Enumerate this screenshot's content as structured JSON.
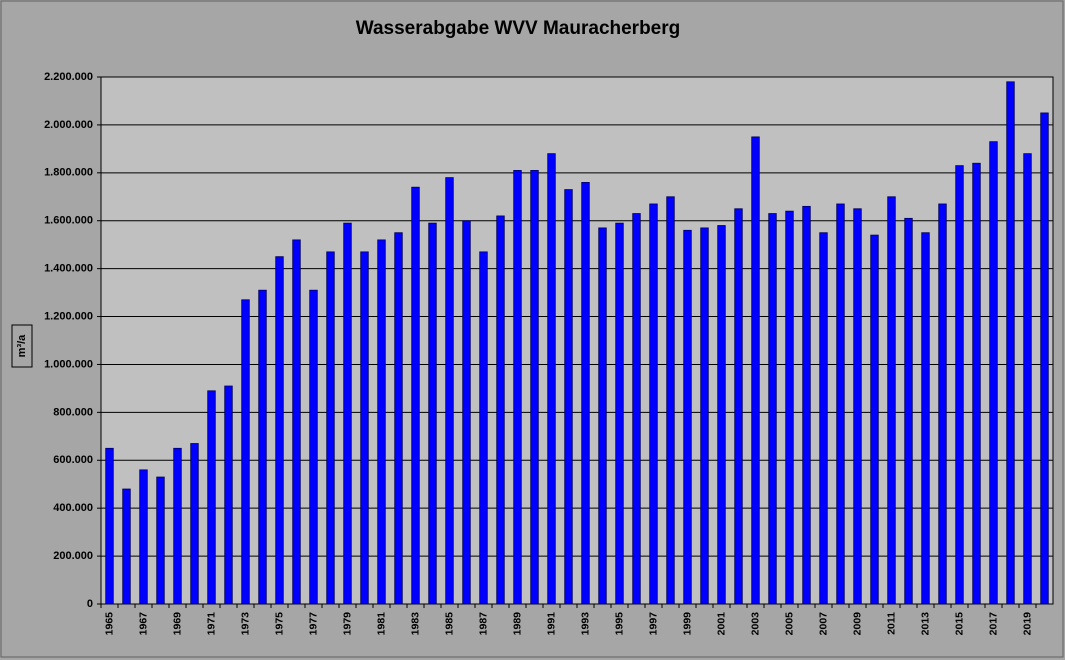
{
  "chart_data": {
    "type": "bar",
    "title": "Wasserabgabe WVV Mauracherberg",
    "y_label": "m³/a",
    "categories": [
      "1965",
      null,
      "1967",
      null,
      "1969",
      null,
      "1971",
      null,
      "1973",
      null,
      "1975",
      null,
      "1977",
      null,
      "1979",
      null,
      "1981",
      null,
      "1983",
      null,
      "1985",
      null,
      "1987",
      null,
      "1989",
      null,
      "1991",
      null,
      "1993",
      null,
      "1995",
      null,
      "1997",
      null,
      "1999",
      null,
      "2001",
      null,
      "2003",
      null,
      "2005",
      null,
      "2007",
      null,
      "2009",
      null,
      "2011",
      null,
      "2013",
      null,
      "2015",
      null,
      "2017",
      null,
      "2019",
      null
    ],
    "values": [
      650000,
      480000,
      560000,
      530000,
      650000,
      670000,
      890000,
      910000,
      1270000,
      1310000,
      1450000,
      1520000,
      1310000,
      1470000,
      1590000,
      1470000,
      1520000,
      1550000,
      1740000,
      1590000,
      1780000,
      1600000,
      1470000,
      1620000,
      1810000,
      1810000,
      1880000,
      1730000,
      1760000,
      1570000,
      1590000,
      1630000,
      1670000,
      1700000,
      1560000,
      1570000,
      1580000,
      1650000,
      1950000,
      1630000,
      1640000,
      1660000,
      1550000,
      1670000,
      1650000,
      1540000,
      1700000,
      1610000,
      1550000,
      1670000,
      1830000,
      1840000,
      1930000,
      2180000,
      1880000,
      2050000
    ],
    "color": "#0000ff",
    "ylim": [
      0,
      2200000
    ],
    "yticks": [
      0,
      {
        "value": 200000,
        "label": "200.000"
      },
      {
        "value": 400000,
        "label": "400.000"
      },
      {
        "value": 600000,
        "label": "600.000"
      },
      {
        "value": 800000,
        "label": "800.000"
      },
      {
        "value": 1000000,
        "label": "1.000.000"
      },
      {
        "value": 1200000,
        "label": "1.200.000"
      },
      {
        "value": 1400000,
        "label": "1.400.000"
      },
      {
        "value": 1600000,
        "label": "1.600.000"
      },
      {
        "value": 1800000,
        "label": "1.800.000"
      },
      {
        "value": 2000000,
        "label": "2.000.000"
      },
      {
        "value": 2200000,
        "label": "2.200.000"
      }
    ],
    "grid": true
  }
}
